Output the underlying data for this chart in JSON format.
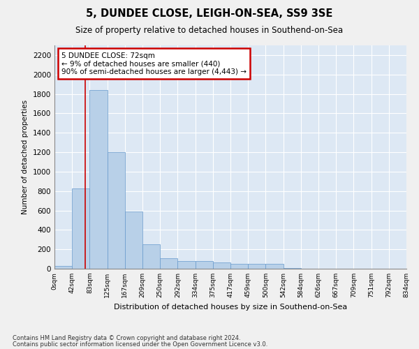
{
  "title": "5, DUNDEE CLOSE, LEIGH-ON-SEA, SS9 3SE",
  "subtitle": "Size of property relative to detached houses in Southend-on-Sea",
  "xlabel": "Distribution of detached houses by size in Southend-on-Sea",
  "ylabel": "Number of detached properties",
  "bin_labels": [
    "0sqm",
    "42sqm",
    "83sqm",
    "125sqm",
    "167sqm",
    "209sqm",
    "250sqm",
    "292sqm",
    "334sqm",
    "375sqm",
    "417sqm",
    "459sqm",
    "500sqm",
    "542sqm",
    "584sqm",
    "626sqm",
    "667sqm",
    "709sqm",
    "751sqm",
    "792sqm",
    "834sqm"
  ],
  "bar_heights": [
    28,
    830,
    1840,
    1200,
    590,
    255,
    108,
    78,
    76,
    68,
    50,
    48,
    48,
    5,
    3,
    2,
    1,
    1,
    1,
    1
  ],
  "bar_color": "#b8d0e8",
  "bar_edge_color": "#6699cc",
  "background_color": "#dde8f4",
  "grid_color": "#ffffff",
  "property_line_color": "#cc0000",
  "annotation_text": "5 DUNDEE CLOSE: 72sqm\n← 9% of detached houses are smaller (440)\n90% of semi-detached houses are larger (4,443) →",
  "annotation_box_color": "#cc0000",
  "ylim": [
    0,
    2300
  ],
  "yticks": [
    0,
    200,
    400,
    600,
    800,
    1000,
    1200,
    1400,
    1600,
    1800,
    2000,
    2200
  ],
  "footnote1": "Contains HM Land Registry data © Crown copyright and database right 2024.",
  "footnote2": "Contains public sector information licensed under the Open Government Licence v3.0."
}
